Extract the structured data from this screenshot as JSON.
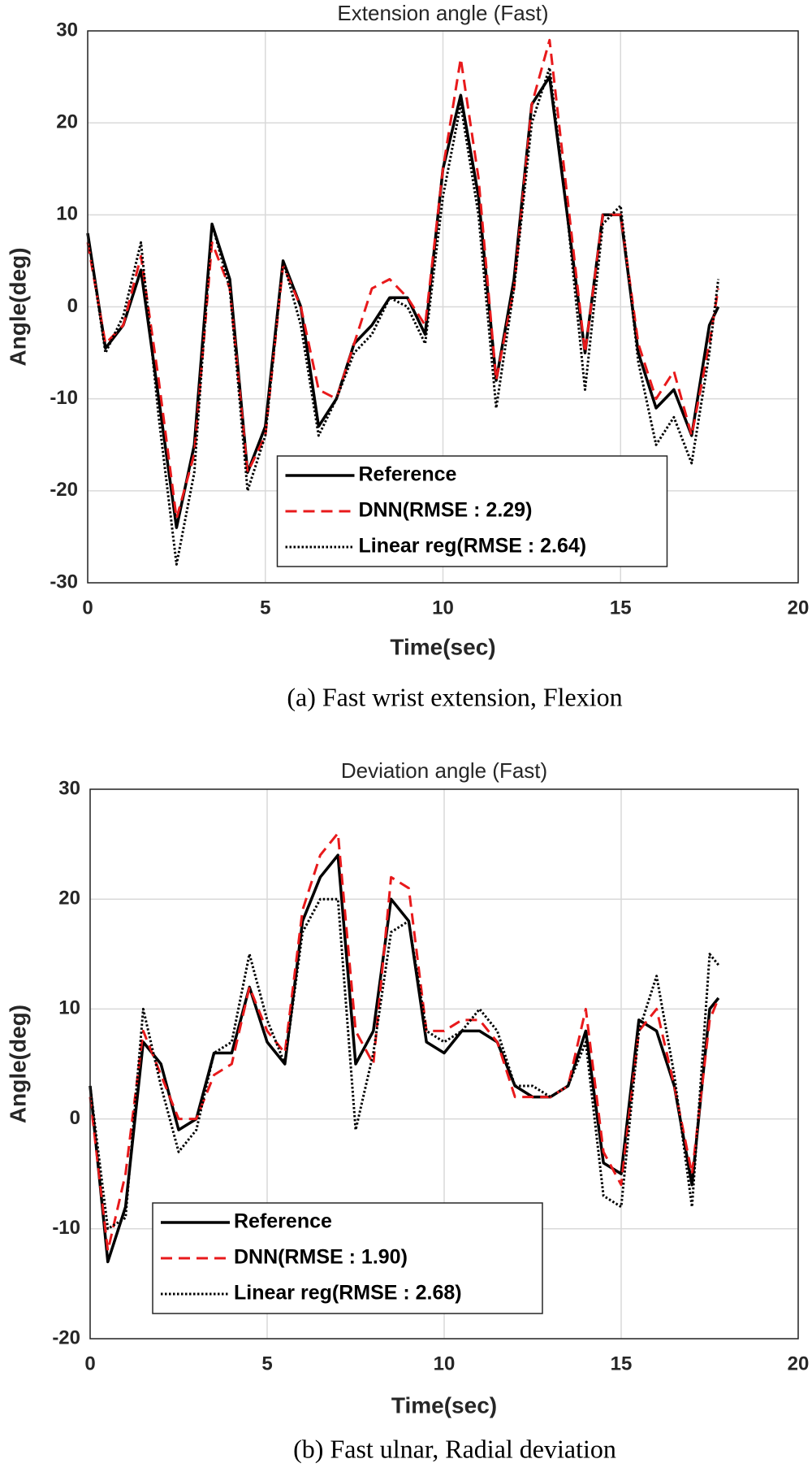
{
  "chart_data": [
    {
      "type": "line",
      "title": "Extension angle (Fast)",
      "x_label": "Time(sec)",
      "y_label": "Angle(deg)",
      "caption": "(a) Fast wrist extension, Flexion",
      "x": [
        0,
        0.5,
        1,
        1.5,
        2,
        2.5,
        3,
        3.5,
        4,
        4.5,
        5,
        5.5,
        6,
        6.5,
        7,
        7.5,
        8,
        8.5,
        9,
        9.5,
        10,
        10.5,
        11,
        11.5,
        12,
        12.5,
        13,
        13.5,
        14,
        14.5,
        15,
        15.5,
        16,
        16.5,
        17,
        17.5,
        17.75
      ],
      "xlim": [
        0,
        20
      ],
      "xticks": [
        0,
        5,
        10,
        15,
        20
      ],
      "ylim": [
        -30,
        30
      ],
      "yticks": [
        -30,
        -20,
        -10,
        0,
        10,
        20,
        30
      ],
      "grid": true,
      "legend": "bottom",
      "series": [
        {
          "name": "Reference",
          "color": "#000000",
          "style": "solid",
          "values": [
            8,
            -4.5,
            -2,
            4,
            -10,
            -24,
            -15,
            9,
            3,
            -18,
            -13,
            5,
            0,
            -13,
            -10,
            -4,
            -2,
            1,
            1,
            -3,
            15,
            23,
            12,
            -8,
            3,
            22,
            25,
            10,
            -5,
            10,
            10,
            -5,
            -11,
            -9,
            -14,
            -2,
            0
          ]
        },
        {
          "name": "DNN(RMSE : 2.29)",
          "color": "#e8191b",
          "style": "dashed",
          "values": [
            7,
            -4,
            -2,
            5.5,
            -8,
            -23,
            -16,
            7,
            2,
            -18,
            -14,
            4.5,
            0,
            -9,
            -10,
            -4,
            2,
            3,
            1,
            -2,
            15,
            27,
            14,
            -8,
            2,
            22,
            29,
            12,
            -5,
            10,
            10,
            -4,
            -10,
            -7,
            -14,
            -4,
            2
          ]
        },
        {
          "name": "Linear reg(RMSE : 2.64)",
          "color": "#000000",
          "style": "dotted",
          "values": [
            8,
            -5,
            -1,
            7,
            -12,
            -28,
            -18,
            9,
            2,
            -20,
            -14,
            5,
            -2,
            -14,
            -10,
            -5,
            -3,
            1,
            0,
            -4,
            12,
            22,
            10,
            -11,
            2,
            20,
            26,
            10,
            -9,
            9,
            11,
            -6,
            -15,
            -12,
            -17,
            -5,
            3
          ]
        }
      ]
    },
    {
      "type": "line",
      "title": "Deviation angle (Fast)",
      "x_label": "Time(sec)",
      "y_label": "Angle(deg)",
      "caption": "(b) Fast ulnar, Radial deviation",
      "x": [
        0,
        0.5,
        1,
        1.5,
        2,
        2.5,
        3,
        3.5,
        4,
        4.5,
        5,
        5.5,
        6,
        6.5,
        7,
        7.5,
        8,
        8.5,
        9,
        9.5,
        10,
        10.5,
        11,
        11.5,
        12,
        12.5,
        13,
        13.5,
        14,
        14.5,
        15,
        15.5,
        16,
        16.5,
        17,
        17.5,
        17.75
      ],
      "xlim": [
        0,
        20
      ],
      "xticks": [
        0,
        5,
        10,
        15,
        20
      ],
      "ylim": [
        -20,
        30
      ],
      "yticks": [
        -20,
        -10,
        0,
        10,
        20,
        30
      ],
      "grid": true,
      "legend": "bottom-left",
      "series": [
        {
          "name": "Reference",
          "color": "#000000",
          "style": "solid",
          "values": [
            3,
            -13,
            -8,
            7,
            5,
            -1,
            0,
            6,
            6,
            12,
            7,
            5,
            18,
            22,
            24,
            5,
            8,
            20,
            18,
            7,
            6,
            8,
            8,
            7,
            3,
            2,
            2,
            3,
            8,
            -4,
            -5,
            9,
            8,
            3,
            -6,
            10,
            11
          ]
        },
        {
          "name": "DNN(RMSE : 1.90)",
          "color": "#e8191b",
          "style": "dashed",
          "values": [
            2,
            -12,
            -5,
            8,
            4,
            0,
            0,
            4,
            5,
            12,
            8,
            6,
            19,
            24,
            26,
            8,
            5,
            22,
            21,
            8,
            8,
            9,
            9,
            7,
            2,
            2,
            2,
            3,
            10,
            -3,
            -6,
            8,
            10,
            3,
            -5,
            9,
            11
          ]
        },
        {
          "name": "Linear reg(RMSE : 2.68)",
          "color": "#000000",
          "style": "dotted",
          "values": [
            3,
            -10,
            -9,
            10,
            3,
            -3,
            -1,
            6,
            7,
            15,
            9,
            5,
            17,
            20,
            20,
            -1,
            6,
            17,
            18,
            8,
            7,
            8,
            10,
            8,
            3,
            3,
            2,
            3,
            7,
            -7,
            -8,
            8,
            13,
            4,
            -8,
            15,
            14
          ]
        }
      ]
    }
  ]
}
